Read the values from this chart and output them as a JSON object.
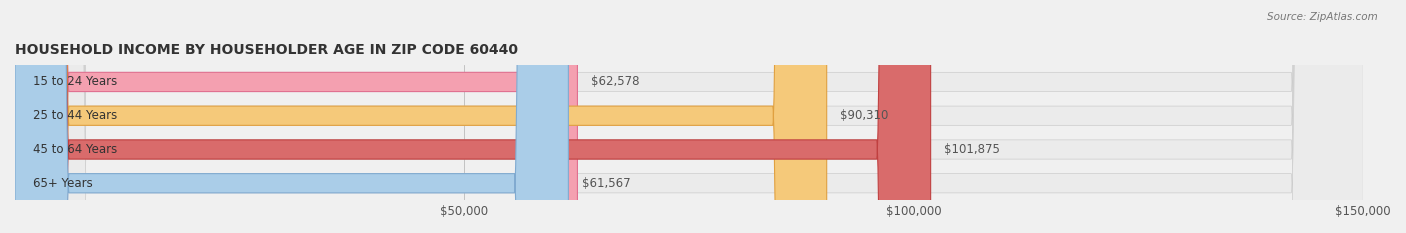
{
  "title": "HOUSEHOLD INCOME BY HOUSEHOLDER AGE IN ZIP CODE 60440",
  "source": "Source: ZipAtlas.com",
  "categories": [
    "15 to 24 Years",
    "25 to 44 Years",
    "45 to 64 Years",
    "65+ Years"
  ],
  "values": [
    62578,
    90310,
    101875,
    61567
  ],
  "bar_colors": [
    "#f4a0b0",
    "#f5c97a",
    "#d96b6b",
    "#aacde8"
  ],
  "bar_edge_colors": [
    "#e07090",
    "#e0a040",
    "#c04040",
    "#80aad0"
  ],
  "label_colors": [
    "#c05070",
    "#c07830",
    "#b03030",
    "#5080a0"
  ],
  "background_color": "#f0f0f0",
  "bar_bg_color": "#e8e8e8",
  "xlim": [
    0,
    150000
  ],
  "xticks": [
    50000,
    100000,
    150000
  ],
  "xtick_labels": [
    "$50,000",
    "$100,000",
    "$150,000"
  ],
  "figsize": [
    14.06,
    2.33
  ],
  "dpi": 100
}
